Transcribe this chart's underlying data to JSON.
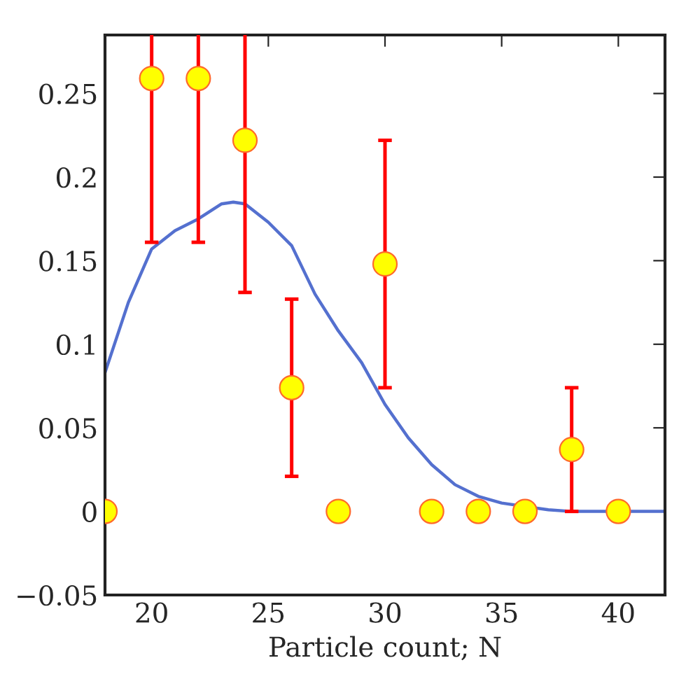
{
  "chart_data": {
    "type": "scatter",
    "xlabel": "Particle count; N",
    "xlim": [
      18,
      42
    ],
    "ylim": [
      -0.05,
      0.285
    ],
    "xticks": [
      20,
      25,
      30,
      35,
      40
    ],
    "yticks": [
      {
        "value": -0.05,
        "label": "−0.05"
      },
      0,
      0.05,
      0.1,
      0.15,
      0.2,
      0.25
    ],
    "grid": false,
    "legend": false,
    "series": [
      {
        "type": "line",
        "color": "#5470cf",
        "marker": "none",
        "line_style": "solid",
        "x": [
          18,
          19,
          20,
          21,
          22,
          23,
          23.5,
          24,
          25,
          26,
          27,
          28,
          29,
          30,
          31,
          32,
          33,
          34,
          35,
          37,
          38,
          40,
          42
        ],
        "values": [
          0.083,
          0.125,
          0.157,
          0.168,
          0.175,
          0.184,
          0.185,
          0.184,
          0.173,
          0.159,
          0.13,
          0.108,
          0.089,
          0.064,
          0.044,
          0.028,
          0.016,
          0.009,
          0.005,
          0.001,
          0,
          0,
          0
        ]
      },
      {
        "color": "#ffff00",
        "marker": "circle",
        "x": [
          18,
          20,
          22,
          24,
          26,
          28,
          30,
          32,
          34,
          36,
          38,
          40
        ],
        "values": [
          0,
          0.259,
          0.259,
          0.222,
          0.074,
          0,
          0.148,
          0,
          0,
          0,
          0.037,
          0
        ],
        "errors": [
          null,
          [
            0.161,
            0.285
          ],
          [
            0.161,
            0.285
          ],
          [
            0.131,
            0.285
          ],
          0.053,
          null,
          0.074,
          null,
          null,
          null,
          0.037,
          null
        ]
      }
    ]
  }
}
